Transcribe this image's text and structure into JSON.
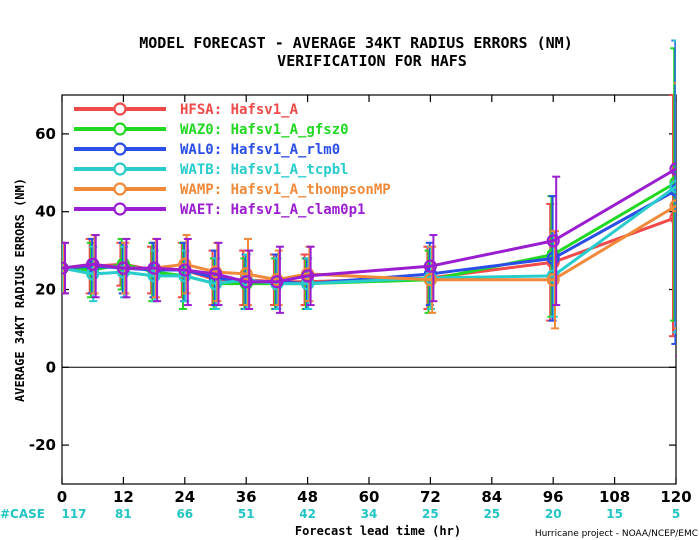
{
  "chart_data": {
    "type": "line",
    "title": "MODEL FORECAST - AVERAGE 34KT RADIUS ERRORS (NM)",
    "subtitle": "VERIFICATION FOR HAFS",
    "xlabel": "Forecast lead time (hr)",
    "ylabel": "AVERAGE 34KT RADIUS ERRORS (NM)",
    "xlim": [
      0,
      120
    ],
    "ylim": [
      -30,
      70
    ],
    "x_ticks": [
      0,
      12,
      24,
      36,
      48,
      60,
      72,
      84,
      96,
      108,
      120
    ],
    "y_ticks": [
      -20,
      0,
      20,
      40,
      60
    ],
    "legend_position": "top-left",
    "case_label": "#CASE",
    "cases": [
      117,
      81,
      66,
      51,
      42,
      34,
      25,
      25,
      20,
      15,
      5
    ],
    "credit": "Hurricane project - NOAA/NCEP/EMC",
    "x": [
      0,
      6,
      12,
      18,
      24,
      30,
      36,
      42,
      48,
      72,
      96,
      120
    ],
    "series": [
      {
        "name": "HFSA:  Hafsv1_A",
        "color": "#f04a4a",
        "values": [
          25.5,
          26.0,
          26.5,
          25.0,
          25.0,
          22.5,
          22.5,
          22.0,
          22.0,
          23.0,
          27.0,
          38.5
        ],
        "lower": [
          19,
          19,
          21,
          19,
          18,
          16,
          16,
          16,
          16,
          15,
          12,
          8
        ],
        "upper": [
          32,
          33,
          32,
          31,
          32,
          30,
          30,
          29,
          29,
          31,
          42,
          70
        ]
      },
      {
        "name": "WAZ0:  Hafsv1_A_gfsz0",
        "color": "#22d822",
        "values": [
          25.5,
          25.0,
          26.5,
          24.5,
          23.5,
          21.5,
          21.5,
          21.5,
          21.5,
          22.5,
          29.0,
          47.5
        ],
        "lower": [
          19,
          18,
          20,
          17,
          15,
          15,
          15,
          15,
          15,
          14,
          13,
          12
        ],
        "upper": [
          32,
          32,
          33,
          32,
          32,
          28,
          28,
          28,
          28,
          30,
          44,
          82
        ]
      },
      {
        "name": "WAL0:  Hafsv1_A_rlm0",
        "color": "#2b4de8",
        "values": [
          25.5,
          26.0,
          25.5,
          25.0,
          25.0,
          23.0,
          22.0,
          22.0,
          21.5,
          24.0,
          28.0,
          45.5
        ],
        "lower": [
          19,
          19,
          19,
          18,
          17,
          16,
          15,
          15,
          15,
          16,
          12,
          6
        ],
        "upper": [
          32,
          33,
          32,
          32,
          32,
          30,
          29,
          29,
          28,
          32,
          44,
          84
        ]
      },
      {
        "name": "WATB:  Hafsv1_A_tcpbl",
        "color": "#29cccc",
        "values": [
          25.5,
          24.0,
          24.5,
          23.5,
          23.5,
          21.5,
          22.5,
          21.5,
          21.5,
          23.0,
          23.5,
          46.5
        ],
        "lower": [
          19,
          17,
          18,
          17,
          17,
          15,
          15,
          15,
          15,
          15,
          13,
          9
        ],
        "upper": [
          32,
          31,
          31,
          30,
          30,
          28,
          29,
          28,
          28,
          31,
          34,
          84
        ]
      },
      {
        "name": "WAMP:  Hafsv1_A_thompsonMP",
        "color": "#f08a3a",
        "values": [
          25.5,
          26.5,
          25.5,
          25.5,
          26.5,
          24.5,
          24.0,
          22.5,
          24.0,
          22.5,
          22.5,
          41.5
        ],
        "lower": [
          19,
          19,
          19,
          18,
          19,
          17,
          16,
          16,
          17,
          14,
          10,
          10
        ],
        "upper": [
          32,
          34,
          32,
          33,
          34,
          32,
          33,
          30,
          31,
          31,
          35,
          73
        ]
      },
      {
        "name": "WAET:  Hafsv1_A_clam0p1",
        "color": "#9a1ed0",
        "values": [
          25.5,
          26.5,
          25.5,
          25.5,
          25.0,
          24.0,
          22.0,
          22.0,
          23.5,
          26.0,
          32.5,
          51.0
        ],
        "lower": [
          19,
          18,
          18,
          17,
          16,
          16,
          15,
          14,
          16,
          17,
          16,
          3
        ],
        "upper": [
          32,
          34,
          33,
          33,
          33,
          32,
          30,
          31,
          31,
          34,
          49,
          97
        ]
      }
    ]
  }
}
